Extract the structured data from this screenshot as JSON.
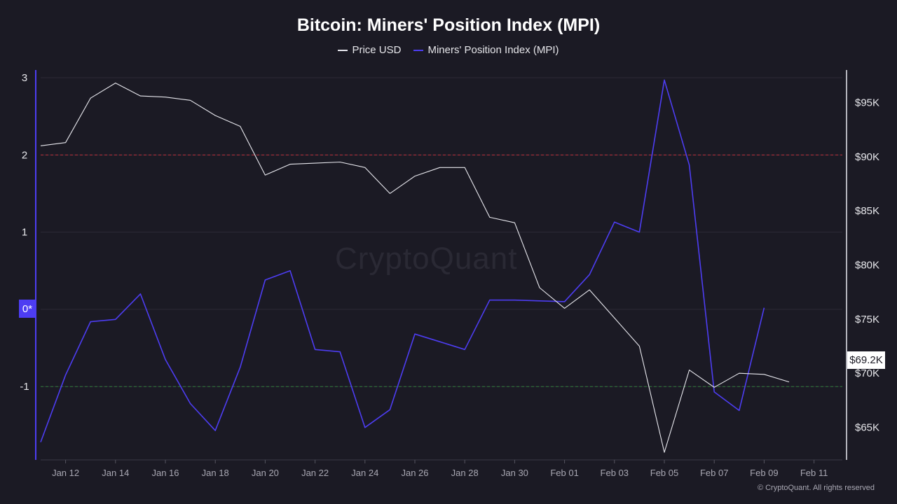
{
  "colors": {
    "background": "#1b1a24",
    "price": "#e8e8ee",
    "mpi": "#4d3df2",
    "upper_threshold": "#c0303c",
    "lower_threshold": "#2f7a3a",
    "grid": "#2c2b36"
  },
  "title": "Bitcoin: Miners' Position Index (MPI)",
  "watermark": "CryptoQuant",
  "copyright": "© CryptoQuant. All rights reserved",
  "zero_label": "0*",
  "price_badge": "$69.2K",
  "chart_data": {
    "type": "line",
    "title": "Bitcoin: Miners' Position Index (MPI)",
    "legend_placement": "top-center",
    "grid": true,
    "x_ticks": [
      "Jan 12",
      "Jan 14",
      "Jan 16",
      "Jan 18",
      "Jan 20",
      "Jan 22",
      "Jan 24",
      "Jan 26",
      "Jan 28",
      "Jan 30",
      "Feb 01",
      "Feb 03",
      "Feb 05",
      "Feb 07",
      "Feb 09",
      "Feb 11"
    ],
    "x": [
      "Jan 11",
      "Jan 12",
      "Jan 13",
      "Jan 14",
      "Jan 15",
      "Jan 16",
      "Jan 17",
      "Jan 18",
      "Jan 19",
      "Jan 20",
      "Jan 21",
      "Jan 22",
      "Jan 23",
      "Jan 24",
      "Jan 25",
      "Jan 26",
      "Jan 27",
      "Jan 28",
      "Jan 29",
      "Jan 30",
      "Jan 31",
      "Feb 01",
      "Feb 02",
      "Feb 03",
      "Feb 04",
      "Feb 05",
      "Feb 06",
      "Feb 07",
      "Feb 08",
      "Feb 09",
      "Feb 10"
    ],
    "y_left": {
      "ticks": [
        "3",
        "2",
        "1",
        "0*",
        "-1"
      ],
      "range": [
        -1.95,
        3.1
      ]
    },
    "y_right": {
      "ticks": [
        "$95K",
        "$90K",
        "$85K",
        "$80K",
        "$75K",
        "$70K",
        "$65K"
      ],
      "range": [
        62000,
        98000
      ]
    },
    "thresholds": {
      "upper": 2,
      "lower": -1
    },
    "series": [
      {
        "name": "Price USD",
        "axis": "right",
        "values": [
          91000,
          91300,
          95400,
          96800,
          95600,
          95500,
          95200,
          93800,
          92800,
          88300,
          89300,
          89400,
          89500,
          89000,
          86600,
          88200,
          89000,
          89000,
          84400,
          83900,
          77900,
          76000,
          77700,
          75100,
          72500,
          62700,
          70300,
          68700,
          70000,
          69900,
          69200
        ]
      },
      {
        "name": "Miners' Position Index (MPI)",
        "axis": "left",
        "values": [
          -1.72,
          -0.85,
          -0.16,
          -0.13,
          0.2,
          -0.65,
          -1.22,
          -1.57,
          -0.75,
          0.38,
          0.5,
          -0.52,
          -0.55,
          -1.53,
          -1.3,
          -0.32,
          -0.42,
          -0.52,
          0.12,
          0.12,
          0.11,
          0.1,
          0.45,
          1.13,
          1.0,
          2.97,
          1.87,
          -1.07,
          -1.31,
          0.02,
          null
        ]
      }
    ]
  }
}
